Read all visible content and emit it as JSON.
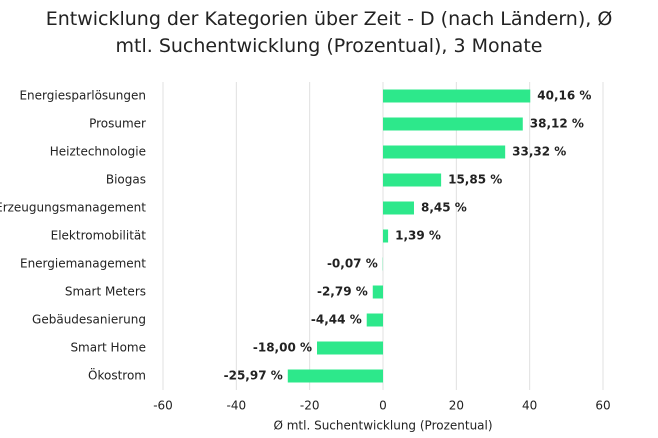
{
  "chart_data": {
    "type": "bar",
    "orientation": "horizontal",
    "title": "Entwicklung der Kategorien über Zeit - D (nach Ländern), Ø mtl. Suchentwicklung (Prozentual), 3 Monate",
    "x_label": "Ø mtl. Suchentwicklung (Prozentual)",
    "categories": [
      "Energiesparlösungen",
      "Prosumer",
      "Heiztechnologie",
      "Biogas",
      "Erzeugungsmanagement",
      "Elektromobilität",
      "Energiemanagement",
      "Smart Meters",
      "Gebäudesanierung",
      "Smart Home",
      "Ökostrom"
    ],
    "values": [
      40.16,
      38.12,
      33.32,
      15.85,
      8.45,
      1.39,
      -0.07,
      -2.79,
      -4.44,
      -18.0,
      -25.97
    ],
    "value_labels": [
      "40,16 %",
      "38,12 %",
      "33,32 %",
      "15,85 %",
      "8,45 %",
      "1,39 %",
      "-0,07 %",
      "-2,79 %",
      "-4,44 %",
      "-18,00 %",
      "-25,97 %"
    ],
    "color": "#2de88b",
    "xlim": [
      -60,
      60
    ],
    "xticks": [
      -60,
      -40,
      -20,
      0,
      20,
      40,
      60
    ],
    "grid": true
  }
}
